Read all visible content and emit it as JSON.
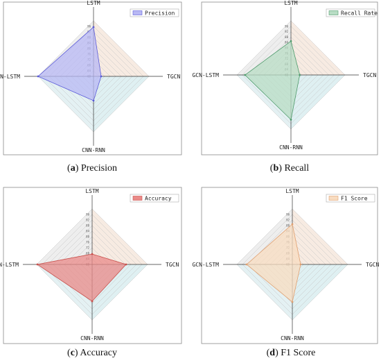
{
  "chart_data": [
    {
      "type": "radar",
      "caption_letter": "a",
      "caption_text": "Precision",
      "axes": [
        "LSTM",
        "TGCN",
        "CNN-RNN",
        "GCN-LSTM"
      ],
      "tick_labels": [
        "60",
        "64",
        "68",
        "72",
        "76",
        "80",
        "84",
        "88",
        "92",
        "96"
      ],
      "series": [
        {
          "name": "Precision",
          "values": [
            95.5,
            65.5,
            77.5,
            100
          ],
          "color": "#b8b8f4",
          "stroke": "#5a5ad8"
        }
      ],
      "range": [
        60,
        100
      ],
      "legend": "top-right"
    },
    {
      "type": "radar",
      "caption_letter": "b",
      "caption_text": "Recall",
      "axes": [
        "LSTM",
        "TGCN",
        "CNN-RNN",
        "GCN-LSTM"
      ],
      "tick_labels": [
        "60",
        "64",
        "68",
        "72",
        "76",
        "80",
        "84",
        "88",
        "92",
        "96"
      ],
      "series": [
        {
          "name": "Recall Rate",
          "values": [
            85,
            66.5,
            93,
            94
          ],
          "color": "#b8dcc4",
          "stroke": "#4f9a6c"
        }
      ],
      "range": [
        60,
        100
      ],
      "legend": "top-right"
    },
    {
      "type": "radar",
      "caption_letter": "c",
      "caption_text": "Accuracy",
      "axes": [
        "LSTM",
        "TGCN",
        "CNN-RNN",
        "GCN-LSTM"
      ],
      "tick_labels": [
        "60",
        "64",
        "68",
        "72",
        "76",
        "80",
        "84",
        "88",
        "92",
        "96"
      ],
      "series": [
        {
          "name": "Accuracy",
          "values": [
            67.5,
            84.5,
            86.5,
            99.5
          ],
          "color": "#ea8a88",
          "stroke": "#c8504c"
        }
      ],
      "range": [
        60,
        100
      ],
      "legend": "top-right"
    },
    {
      "type": "radar",
      "caption_letter": "d",
      "caption_text": "F1 Score",
      "axes": [
        "LSTM",
        "TGCN",
        "CNN-RNN",
        "GCN-LSTM"
      ],
      "tick_labels": [
        "60",
        "64",
        "68",
        "72",
        "76",
        "80",
        "84",
        "88",
        "92",
        "96"
      ],
      "series": [
        {
          "name": "F1 Score",
          "values": [
            89,
            66,
            87,
            93
          ],
          "color": "#f8dcc0",
          "stroke": "#e0a070"
        }
      ],
      "range": [
        60,
        100
      ],
      "legend": "top-right"
    }
  ]
}
